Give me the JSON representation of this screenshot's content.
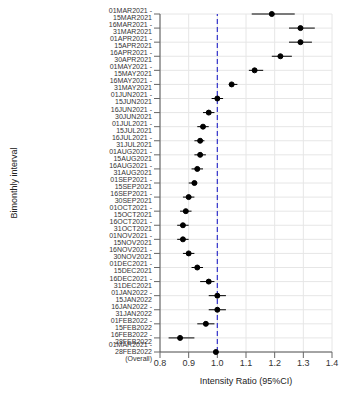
{
  "chart_data": {
    "type": "forest",
    "x_label": "Intensity Ratio (95%CI)",
    "y_label": "Bimonthly interval",
    "orientation": "horizontal",
    "categories": [
      "01MAR2021 - 15MAR2021",
      "16MAR2021 - 31MAR2021",
      "01APR2021 - 15APR2021",
      "16APR2021 - 30APR2021",
      "01MAY2021 - 15MAY2021",
      "16MAY2021 - 31MAY2021",
      "01JUN2021 - 15JUN2021",
      "16JUN2021 - 30JUN2021",
      "01JUL2021 - 15JUL2021",
      "16JUL2021 - 31JUL2021",
      "01AUG2021 - 15AUG2021",
      "16AUG2021 - 31AUG2021",
      "01SEP2021 - 15SEP2021",
      "16SEP2021 - 30SEP2021",
      "01OCT2021 - 15OCT2021",
      "16OCT2021 - 31OCT2021",
      "01NOV2021 - 15NOV2021",
      "16NOV2021 - 30NOV2021",
      "01DEC2021 - 15DEC2021",
      "16DEC2021 - 31DEC2021",
      "01JAN2022 - 15JAN2022",
      "16JAN2022 - 31JAN2022",
      "01FEB2022 - 15FEB2022",
      "16FEB2022 - 28FEB2022",
      "01MAR2021 - 28FEB2022 (Overall)"
    ],
    "values": [
      1.19,
      1.29,
      1.29,
      1.22,
      1.13,
      1.05,
      1.0,
      0.97,
      0.95,
      0.94,
      0.94,
      0.93,
      0.92,
      0.9,
      0.89,
      0.88,
      0.88,
      0.9,
      0.93,
      0.97,
      1.0,
      1.0,
      0.96,
      0.87,
      0.995
    ],
    "ci_lower": [
      1.12,
      1.25,
      1.25,
      1.19,
      1.11,
      1.04,
      0.98,
      0.95,
      0.93,
      0.92,
      0.92,
      0.91,
      0.9,
      0.88,
      0.87,
      0.86,
      0.86,
      0.88,
      0.91,
      0.94,
      0.97,
      0.97,
      0.93,
      0.83,
      0.99
    ],
    "ci_upper": [
      1.27,
      1.34,
      1.33,
      1.26,
      1.16,
      1.07,
      1.02,
      0.99,
      0.97,
      0.955,
      0.96,
      0.95,
      0.93,
      0.92,
      0.91,
      0.9,
      0.9,
      0.92,
      0.95,
      0.99,
      1.03,
      1.03,
      0.99,
      0.92,
      1.0
    ],
    "reference_line": 1,
    "color": "#000000",
    "reference_color": "#3333cc",
    "xlim": [
      0.8,
      1.4
    ],
    "xticks": [
      0.8,
      0.9,
      {
        "value": 1,
        "label": "1.0"
      },
      1.1,
      1.2,
      1.3,
      1.4
    ],
    "grid": true
  }
}
